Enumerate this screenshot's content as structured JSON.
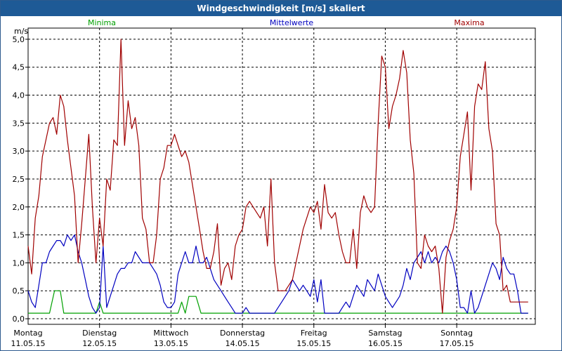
{
  "window": {
    "title": "Windgeschwindigkeit [m/s] skaliert"
  },
  "chart_data": {
    "type": "line",
    "title": "Windgeschwindigkeit [m/s] skaliert",
    "ylabel": "m/s",
    "xlabel": "",
    "ylim": [
      -0.1,
      5.2
    ],
    "xlim": [
      0,
      7.1
    ],
    "grid": true,
    "legend_placement": "top",
    "y_ticks": [
      "0,0",
      "0,5",
      "1,0",
      "1,5",
      "2,0",
      "2,5",
      "3,0",
      "3,5",
      "4,0",
      "4,5",
      "5,0"
    ],
    "x_ticks": [
      {
        "day": "Montag",
        "date": "11.05.15"
      },
      {
        "day": "Dienstag",
        "date": "12.05.15"
      },
      {
        "day": "Mittwoch",
        "date": "13.05.15"
      },
      {
        "day": "Donnerstag",
        "date": "14.05.15"
      },
      {
        "day": "Freitag",
        "date": "15.05.15"
      },
      {
        "day": "Samstag",
        "date": "16.05.15"
      },
      {
        "day": "Sonntag",
        "date": "17.05.15"
      }
    ],
    "series": [
      {
        "name": "Minima",
        "color": "#00a000",
        "x": [
          0,
          0.25,
          0.3,
          0.37,
          0.45,
          0.5,
          0.95,
          1.0,
          1.05,
          2.05,
          2.1,
          2.15,
          2.2,
          2.25,
          2.3,
          2.35,
          2.42,
          2.48,
          7.0
        ],
        "y": [
          0.1,
          0.1,
          0.1,
          0.5,
          0.5,
          0.1,
          0.1,
          0.3,
          0.1,
          0.1,
          0.1,
          0.3,
          0.1,
          0.4,
          0.4,
          0.4,
          0.1,
          0.1,
          0.1
        ]
      },
      {
        "name": "Mittelwerte",
        "color": "#0000c0",
        "x": [
          0,
          0.05,
          0.1,
          0.15,
          0.2,
          0.25,
          0.3,
          0.35,
          0.4,
          0.45,
          0.5,
          0.55,
          0.6,
          0.65,
          0.7,
          0.75,
          0.8,
          0.85,
          0.9,
          0.95,
          1.0,
          1.05,
          1.1,
          1.15,
          1.2,
          1.25,
          1.3,
          1.35,
          1.4,
          1.45,
          1.5,
          1.55,
          1.6,
          1.65,
          1.7,
          1.75,
          1.8,
          1.85,
          1.9,
          1.95,
          2.0,
          2.05,
          2.1,
          2.15,
          2.2,
          2.25,
          2.3,
          2.35,
          2.4,
          2.45,
          2.5,
          2.55,
          2.6,
          2.65,
          2.7,
          2.75,
          2.8,
          2.85,
          2.9,
          2.95,
          3.0,
          3.05,
          3.1,
          3.15,
          3.2,
          3.25,
          3.3,
          3.35,
          3.4,
          3.45,
          3.5,
          3.55,
          3.6,
          3.65,
          3.7,
          3.75,
          3.8,
          3.85,
          3.9,
          3.95,
          4.0,
          4.05,
          4.1,
          4.15,
          4.2,
          4.25,
          4.3,
          4.35,
          4.4,
          4.45,
          4.5,
          4.55,
          4.6,
          4.65,
          4.7,
          4.75,
          4.8,
          4.85,
          4.9,
          4.95,
          5.0,
          5.05,
          5.1,
          5.15,
          5.2,
          5.25,
          5.3,
          5.35,
          5.4,
          5.45,
          5.5,
          5.55,
          5.6,
          5.65,
          5.7,
          5.75,
          5.8,
          5.85,
          5.9,
          5.95,
          6.0,
          6.05,
          6.1,
          6.15,
          6.2,
          6.25,
          6.3,
          6.35,
          6.4,
          6.45,
          6.5,
          6.55,
          6.6,
          6.65,
          6.7,
          6.75,
          6.8,
          6.85,
          6.9,
          6.95,
          7.0
        ],
        "y": [
          0.5,
          0.3,
          0.2,
          0.6,
          1.0,
          1.0,
          1.2,
          1.3,
          1.4,
          1.4,
          1.3,
          1.5,
          1.4,
          1.5,
          1.2,
          1.0,
          0.7,
          0.4,
          0.2,
          0.1,
          0.2,
          1.3,
          0.2,
          0.4,
          0.6,
          0.8,
          0.9,
          0.9,
          1.0,
          1.0,
          1.2,
          1.1,
          1.0,
          1.0,
          1.0,
          0.9,
          0.8,
          0.6,
          0.3,
          0.2,
          0.2,
          0.3,
          0.8,
          1.0,
          1.2,
          1.0,
          1.0,
          1.3,
          1.0,
          1.0,
          1.1,
          0.9,
          0.7,
          0.6,
          0.5,
          0.4,
          0.3,
          0.2,
          0.1,
          0.1,
          0.1,
          0.2,
          0.1,
          0.1,
          0.1,
          0.1,
          0.1,
          0.1,
          0.1,
          0.1,
          0.2,
          0.3,
          0.4,
          0.5,
          0.7,
          0.6,
          0.5,
          0.6,
          0.5,
          0.4,
          0.7,
          0.3,
          0.7,
          0.1,
          0.1,
          0.1,
          0.1,
          0.1,
          0.2,
          0.3,
          0.2,
          0.4,
          0.6,
          0.5,
          0.4,
          0.7,
          0.6,
          0.5,
          0.8,
          0.6,
          0.4,
          0.3,
          0.2,
          0.3,
          0.4,
          0.6,
          0.9,
          0.7,
          1.0,
          1.1,
          1.2,
          1.0,
          1.2,
          1.0,
          1.1,
          1.0,
          1.2,
          1.3,
          1.2,
          1.0,
          0.7,
          0.2,
          0.2,
          0.1,
          0.5,
          0.1,
          0.2,
          0.4,
          0.6,
          0.8,
          1.0,
          0.9,
          0.7,
          1.1,
          0.9,
          0.8,
          0.8,
          0.5,
          0.1,
          0.1,
          0.1
        ],
        "spikes": true
      },
      {
        "name": "Maxima",
        "color": "#a00000",
        "x": [
          0,
          0.05,
          0.1,
          0.15,
          0.2,
          0.25,
          0.3,
          0.35,
          0.4,
          0.45,
          0.5,
          0.55,
          0.6,
          0.65,
          0.7,
          0.75,
          0.8,
          0.85,
          0.9,
          0.95,
          1.0,
          1.05,
          1.1,
          1.15,
          1.2,
          1.25,
          1.3,
          1.35,
          1.4,
          1.45,
          1.5,
          1.55,
          1.6,
          1.65,
          1.7,
          1.75,
          1.8,
          1.85,
          1.9,
          1.95,
          2.0,
          2.05,
          2.1,
          2.15,
          2.2,
          2.25,
          2.3,
          2.35,
          2.4,
          2.45,
          2.5,
          2.55,
          2.6,
          2.65,
          2.7,
          2.75,
          2.8,
          2.85,
          2.9,
          2.95,
          3.0,
          3.05,
          3.1,
          3.15,
          3.2,
          3.25,
          3.3,
          3.35,
          3.4,
          3.45,
          3.5,
          3.55,
          3.6,
          3.65,
          3.7,
          3.75,
          3.8,
          3.85,
          3.9,
          3.95,
          4.0,
          4.05,
          4.1,
          4.15,
          4.2,
          4.25,
          4.3,
          4.35,
          4.4,
          4.45,
          4.5,
          4.55,
          4.6,
          4.65,
          4.7,
          4.75,
          4.8,
          4.85,
          4.9,
          4.95,
          5.0,
          5.05,
          5.1,
          5.15,
          5.2,
          5.25,
          5.3,
          5.35,
          5.4,
          5.45,
          5.5,
          5.55,
          5.6,
          5.65,
          5.7,
          5.75,
          5.8,
          5.85,
          5.9,
          5.95,
          6.0,
          6.05,
          6.1,
          6.15,
          6.2,
          6.25,
          6.3,
          6.35,
          6.4,
          6.45,
          6.5,
          6.55,
          6.6,
          6.65,
          6.7,
          6.75,
          6.8,
          6.85,
          6.9,
          6.95,
          7.0
        ],
        "y": [
          1.3,
          0.8,
          1.8,
          2.2,
          2.9,
          3.2,
          3.5,
          3.6,
          3.3,
          4.0,
          3.8,
          3.2,
          2.7,
          2.2,
          1.0,
          1.7,
          2.5,
          3.3,
          2.0,
          1.0,
          1.8,
          1.3,
          2.5,
          2.3,
          3.2,
          3.1,
          5.0,
          3.1,
          3.9,
          3.4,
          3.6,
          3.1,
          1.8,
          1.6,
          1.0,
          1.0,
          1.5,
          2.5,
          2.7,
          3.1,
          3.1,
          3.3,
          3.1,
          2.9,
          3.0,
          2.8,
          2.4,
          2.0,
          1.6,
          1.2,
          0.9,
          0.9,
          1.2,
          1.7,
          0.6,
          0.9,
          1.0,
          0.7,
          1.3,
          1.5,
          1.6,
          2.0,
          2.1,
          2.0,
          1.9,
          1.8,
          2.0,
          1.3,
          2.5,
          1.0,
          0.5,
          0.5,
          0.5,
          0.6,
          0.7,
          1.0,
          1.3,
          1.6,
          1.8,
          2.0,
          1.9,
          2.1,
          1.6,
          2.4,
          1.9,
          1.8,
          1.9,
          1.5,
          1.2,
          1.0,
          1.0,
          1.6,
          0.9,
          1.9,
          2.2,
          2.0,
          1.9,
          2.0,
          3.5,
          4.7,
          4.5,
          3.4,
          3.8,
          4.0,
          4.3,
          4.8,
          4.4,
          3.2,
          2.6,
          1.0,
          0.9,
          1.5,
          1.3,
          1.2,
          1.3,
          0.9,
          0.1,
          1.1,
          1.4,
          1.6,
          2.0,
          2.9,
          3.3,
          3.7,
          2.3,
          3.8,
          4.2,
          4.1,
          4.6,
          3.4,
          3.0,
          1.7,
          1.5,
          0.5,
          0.6,
          0.3,
          0.3,
          0.3,
          0.3,
          0.3,
          0.3
        ],
        "spikes": true
      }
    ]
  }
}
